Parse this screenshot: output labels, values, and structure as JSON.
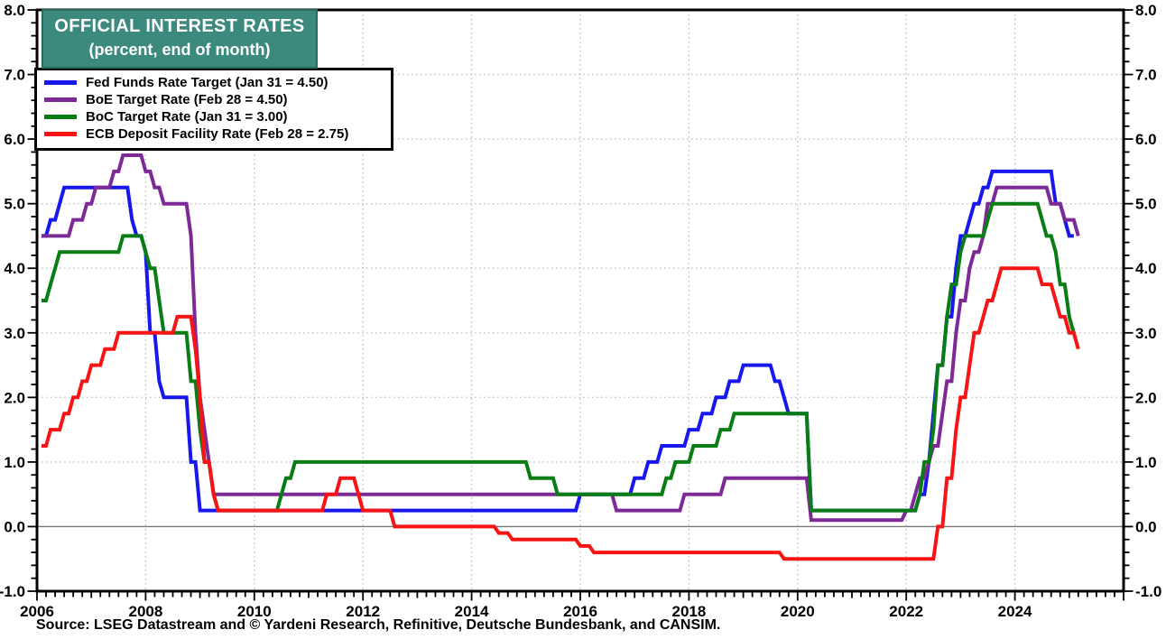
{
  "source": "Source: LSEG Datastream and © Yardeni Research, Refinitive, Deutsche Bundesbank, and CANSIM.",
  "colors": {
    "title_bg": "#3C8A7E",
    "title_border": "#2A6B60",
    "title_text": "#FFFFFF",
    "grid": "#C4C4C4",
    "zero_line": "#777777",
    "axis": "#000000",
    "background": "#FFFFFF"
  },
  "chart_data": {
    "type": "line",
    "title": "OFFICIAL INTEREST RATES",
    "subtitle": "(percent, end of month)",
    "x_axis": {
      "start": 2006,
      "end": 2026,
      "labels": [
        2006,
        2008,
        2010,
        2012,
        2014,
        2016,
        2018,
        2020,
        2022,
        2024
      ],
      "minor_ticks_per_year": 6
    },
    "y_axis": {
      "min": -1.0,
      "max": 8.0,
      "labels": [
        "-1.0",
        "0.0",
        "1.0",
        "2.0",
        "3.0",
        "4.0",
        "5.0",
        "6.0",
        "7.0",
        "8.0"
      ],
      "minor_step": 0.2,
      "sides": [
        "left",
        "right"
      ]
    },
    "grid": {
      "h_values": [
        1,
        2,
        3,
        4,
        5,
        6,
        7
      ],
      "v_years": [
        2008,
        2010,
        2012,
        2014,
        2016,
        2018,
        2020,
        2022,
        2024
      ],
      "zero_line": 0
    },
    "legend_position": "top-left",
    "series": [
      {
        "id": "fed",
        "label": "Fed Funds Rate Target (Jan 31 = 4.50)",
        "color": "#1717EE",
        "end_month": "2025-01",
        "changes": [
          [
            "2006-01",
            4.5
          ],
          [
            "2006-03",
            4.75
          ],
          [
            "2006-05",
            5.0
          ],
          [
            "2006-06",
            5.25
          ],
          [
            "2007-09",
            4.75
          ],
          [
            "2007-10",
            4.5
          ],
          [
            "2007-12",
            4.25
          ],
          [
            "2008-01",
            3.0
          ],
          [
            "2008-03",
            2.25
          ],
          [
            "2008-04",
            2.0
          ],
          [
            "2008-10",
            1.0
          ],
          [
            "2008-12",
            0.25
          ],
          [
            "2015-12",
            0.5
          ],
          [
            "2016-12",
            0.75
          ],
          [
            "2017-03",
            1.0
          ],
          [
            "2017-06",
            1.25
          ],
          [
            "2017-12",
            1.5
          ],
          [
            "2018-03",
            1.75
          ],
          [
            "2018-06",
            2.0
          ],
          [
            "2018-09",
            2.25
          ],
          [
            "2018-12",
            2.5
          ],
          [
            "2019-07",
            2.25
          ],
          [
            "2019-09",
            2.0
          ],
          [
            "2019-10",
            1.75
          ],
          [
            "2020-03",
            0.25
          ],
          [
            "2022-03",
            0.5
          ],
          [
            "2022-05",
            1.0
          ],
          [
            "2022-06",
            1.75
          ],
          [
            "2022-07",
            2.5
          ],
          [
            "2022-09",
            3.25
          ],
          [
            "2022-11",
            4.0
          ],
          [
            "2022-12",
            4.5
          ],
          [
            "2023-02",
            4.75
          ],
          [
            "2023-03",
            5.0
          ],
          [
            "2023-05",
            5.25
          ],
          [
            "2023-07",
            5.5
          ],
          [
            "2024-09",
            5.0
          ],
          [
            "2024-11",
            4.75
          ],
          [
            "2024-12",
            4.5
          ]
        ]
      },
      {
        "id": "boe",
        "label": "BoE Target Rate (Feb 28 = 4.50)",
        "color": "#7E2A96",
        "end_month": "2025-02",
        "changes": [
          [
            "2006-01",
            4.5
          ],
          [
            "2006-08",
            4.75
          ],
          [
            "2006-11",
            5.0
          ],
          [
            "2007-01",
            5.25
          ],
          [
            "2007-05",
            5.5
          ],
          [
            "2007-07",
            5.75
          ],
          [
            "2007-12",
            5.5
          ],
          [
            "2008-02",
            5.25
          ],
          [
            "2008-04",
            5.0
          ],
          [
            "2008-10",
            4.5
          ],
          [
            "2008-11",
            3.0
          ],
          [
            "2008-12",
            2.0
          ],
          [
            "2009-01",
            1.5
          ],
          [
            "2009-02",
            1.0
          ],
          [
            "2009-03",
            0.5
          ],
          [
            "2016-08",
            0.25
          ],
          [
            "2017-11",
            0.5
          ],
          [
            "2018-08",
            0.75
          ],
          [
            "2020-03",
            0.1
          ],
          [
            "2021-12",
            0.25
          ],
          [
            "2022-02",
            0.5
          ],
          [
            "2022-03",
            0.75
          ],
          [
            "2022-05",
            1.0
          ],
          [
            "2022-06",
            1.25
          ],
          [
            "2022-08",
            1.75
          ],
          [
            "2022-09",
            2.25
          ],
          [
            "2022-11",
            3.0
          ],
          [
            "2022-12",
            3.5
          ],
          [
            "2023-02",
            4.0
          ],
          [
            "2023-03",
            4.25
          ],
          [
            "2023-05",
            4.5
          ],
          [
            "2023-06",
            5.0
          ],
          [
            "2023-08",
            5.25
          ],
          [
            "2024-08",
            5.0
          ],
          [
            "2024-11",
            4.75
          ],
          [
            "2025-02",
            4.5
          ]
        ]
      },
      {
        "id": "boc",
        "label": "BoC Target Rate (Jan 31 = 3.00)",
        "color": "#087D14",
        "end_month": "2025-01",
        "changes": [
          [
            "2006-01",
            3.5
          ],
          [
            "2006-03",
            3.75
          ],
          [
            "2006-04",
            4.0
          ],
          [
            "2006-05",
            4.25
          ],
          [
            "2007-07",
            4.5
          ],
          [
            "2007-12",
            4.25
          ],
          [
            "2008-01",
            4.0
          ],
          [
            "2008-03",
            3.5
          ],
          [
            "2008-04",
            3.0
          ],
          [
            "2008-10",
            2.25
          ],
          [
            "2008-12",
            1.5
          ],
          [
            "2009-01",
            1.0
          ],
          [
            "2009-03",
            0.5
          ],
          [
            "2009-04",
            0.25
          ],
          [
            "2010-06",
            0.5
          ],
          [
            "2010-07",
            0.75
          ],
          [
            "2010-09",
            1.0
          ],
          [
            "2015-01",
            0.75
          ],
          [
            "2015-07",
            0.5
          ],
          [
            "2017-07",
            0.75
          ],
          [
            "2017-09",
            1.0
          ],
          [
            "2018-01",
            1.25
          ],
          [
            "2018-07",
            1.5
          ],
          [
            "2018-10",
            1.75
          ],
          [
            "2020-03",
            0.25
          ],
          [
            "2022-03",
            0.5
          ],
          [
            "2022-04",
            1.0
          ],
          [
            "2022-06",
            1.5
          ],
          [
            "2022-07",
            2.5
          ],
          [
            "2022-09",
            3.25
          ],
          [
            "2022-10",
            3.75
          ],
          [
            "2022-12",
            4.25
          ],
          [
            "2023-01",
            4.5
          ],
          [
            "2023-06",
            4.75
          ],
          [
            "2023-07",
            5.0
          ],
          [
            "2024-06",
            4.75
          ],
          [
            "2024-07",
            4.5
          ],
          [
            "2024-09",
            4.25
          ],
          [
            "2024-10",
            3.75
          ],
          [
            "2024-12",
            3.25
          ],
          [
            "2025-01",
            3.0
          ]
        ]
      },
      {
        "id": "ecb",
        "label": "ECB Deposit Facility Rate (Feb 28 = 2.75)",
        "color": "#F81414",
        "end_month": "2025-02",
        "changes": [
          [
            "2006-01",
            1.25
          ],
          [
            "2006-03",
            1.5
          ],
          [
            "2006-06",
            1.75
          ],
          [
            "2006-08",
            2.0
          ],
          [
            "2006-10",
            2.25
          ],
          [
            "2006-12",
            2.5
          ],
          [
            "2007-03",
            2.75
          ],
          [
            "2007-06",
            3.0
          ],
          [
            "2008-07",
            3.25
          ],
          [
            "2008-11",
            2.75
          ],
          [
            "2008-12",
            2.0
          ],
          [
            "2009-01",
            1.0
          ],
          [
            "2009-03",
            0.5
          ],
          [
            "2009-04",
            0.25
          ],
          [
            "2011-04",
            0.5
          ],
          [
            "2011-07",
            0.75
          ],
          [
            "2011-11",
            0.5
          ],
          [
            "2011-12",
            0.25
          ],
          [
            "2012-07",
            0.0
          ],
          [
            "2014-06",
            -0.1
          ],
          [
            "2014-09",
            -0.2
          ],
          [
            "2015-12",
            -0.3
          ],
          [
            "2016-03",
            -0.4
          ],
          [
            "2019-09",
            -0.5
          ],
          [
            "2022-07",
            0.0
          ],
          [
            "2022-09",
            0.75
          ],
          [
            "2022-11",
            1.5
          ],
          [
            "2022-12",
            2.0
          ],
          [
            "2023-02",
            2.5
          ],
          [
            "2023-03",
            3.0
          ],
          [
            "2023-05",
            3.25
          ],
          [
            "2023-06",
            3.5
          ],
          [
            "2023-08",
            3.75
          ],
          [
            "2023-09",
            4.0
          ],
          [
            "2024-06",
            3.75
          ],
          [
            "2024-09",
            3.5
          ],
          [
            "2024-10",
            3.25
          ],
          [
            "2024-12",
            3.0
          ],
          [
            "2025-02",
            2.75
          ]
        ]
      }
    ]
  }
}
